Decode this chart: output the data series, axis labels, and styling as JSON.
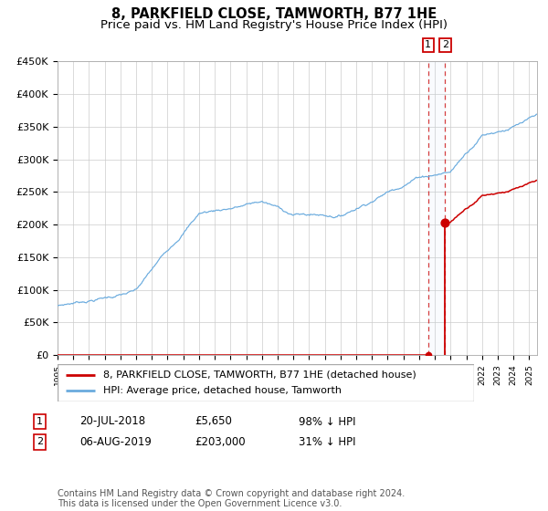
{
  "title": "8, PARKFIELD CLOSE, TAMWORTH, B77 1HE",
  "subtitle": "Price paid vs. HM Land Registry's House Price Index (HPI)",
  "ylim": [
    0,
    450000
  ],
  "yticks": [
    0,
    50000,
    100000,
    150000,
    200000,
    250000,
    300000,
    350000,
    400000,
    450000
  ],
  "ytick_labels": [
    "£0",
    "£50K",
    "£100K",
    "£150K",
    "£200K",
    "£250K",
    "£300K",
    "£350K",
    "£400K",
    "£450K"
  ],
  "hpi_color": "#6aabde",
  "price_color": "#cc0000",
  "point1_year": 2018.55,
  "point1_price": 5650,
  "point2_year": 2019.6,
  "point2_price": 203000,
  "legend_label1": "8, PARKFIELD CLOSE, TAMWORTH, B77 1HE (detached house)",
  "legend_label2": "HPI: Average price, detached house, Tamworth",
  "table_row1": [
    "1",
    "20-JUL-2018",
    "£5,650",
    "98% ↓ HPI"
  ],
  "table_row2": [
    "2",
    "06-AUG-2019",
    "£203,000",
    "31% ↓ HPI"
  ],
  "footer": "Contains HM Land Registry data © Crown copyright and database right 2024.\nThis data is licensed under the Open Government Licence v3.0.",
  "title_fontsize": 10.5,
  "subtitle_fontsize": 9.5,
  "tick_fontsize": 8,
  "axis_label_fontsize": 8,
  "legend_fontsize": 8,
  "table_fontsize": 8.5,
  "footer_fontsize": 7,
  "badge_fontsize": 8
}
